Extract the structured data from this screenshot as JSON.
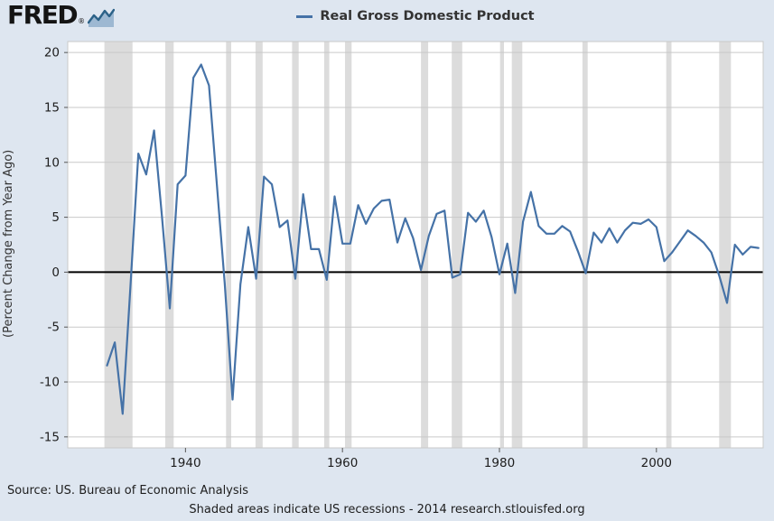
{
  "header": {
    "logo_text": "FRED",
    "logo_reg": "®",
    "legend": {
      "label": "Real Gross Domestic Product",
      "line_color": "#4572a7"
    }
  },
  "chart_data": {
    "type": "line",
    "title": "Real Gross Domestic Product",
    "ylabel": "(Percent Change from Year Ago)",
    "xlabel": "",
    "xlim": [
      1925,
      2013.6
    ],
    "ylim": [
      -16,
      21
    ],
    "x_ticks": [
      1940,
      1960,
      1980,
      2000
    ],
    "y_ticks": [
      -15,
      -10,
      -5,
      0,
      5,
      10,
      15,
      20
    ],
    "grid": "horizontal",
    "legend_position": "top-center",
    "line_color": "#4572a7",
    "recession_band_color": "#dcdcdc",
    "plot_background": "#ffffff",
    "page_background": "#dee6f0",
    "series": [
      {
        "name": "Real Gross Domestic Product",
        "x": [
          1930,
          1931,
          1932,
          1933,
          1934,
          1935,
          1936,
          1937,
          1938,
          1939,
          1940,
          1941,
          1942,
          1943,
          1944,
          1945,
          1946,
          1947,
          1948,
          1949,
          1950,
          1951,
          1952,
          1953,
          1954,
          1955,
          1956,
          1957,
          1958,
          1959,
          1960,
          1961,
          1962,
          1963,
          1964,
          1965,
          1966,
          1967,
          1968,
          1969,
          1970,
          1971,
          1972,
          1973,
          1974,
          1975,
          1976,
          1977,
          1978,
          1979,
          1980,
          1981,
          1982,
          1983,
          1984,
          1985,
          1986,
          1987,
          1988,
          1989,
          1990,
          1991,
          1992,
          1993,
          1994,
          1995,
          1996,
          1997,
          1998,
          1999,
          2000,
          2001,
          2002,
          2003,
          2004,
          2005,
          2006,
          2007,
          2008,
          2009,
          2010,
          2011,
          2012,
          2013
        ],
        "values": [
          -8.5,
          -6.4,
          -12.9,
          -1.2,
          10.8,
          8.9,
          12.9,
          5.1,
          -3.3,
          8.0,
          8.8,
          17.7,
          18.9,
          17.0,
          8.0,
          -1.0,
          -11.6,
          -1.1,
          4.1,
          -0.6,
          8.7,
          8.0,
          4.1,
          4.7,
          -0.6,
          7.1,
          2.1,
          2.1,
          -0.7,
          6.9,
          2.6,
          2.6,
          6.1,
          4.4,
          5.8,
          6.5,
          6.6,
          2.7,
          4.9,
          3.1,
          0.2,
          3.3,
          5.3,
          5.6,
          -0.5,
          -0.2,
          5.4,
          4.6,
          5.6,
          3.2,
          -0.2,
          2.6,
          -1.9,
          4.6,
          7.3,
          4.2,
          3.5,
          3.5,
          4.2,
          3.7,
          1.9,
          -0.1,
          3.6,
          2.7,
          4.0,
          2.7,
          3.8,
          4.5,
          4.4,
          4.8,
          4.1,
          1.0,
          1.8,
          2.8,
          3.8,
          3.3,
          2.7,
          1.8,
          -0.3,
          -2.8,
          2.5,
          1.6,
          2.3,
          2.2
        ]
      }
    ],
    "recessions": [
      [
        1929.67,
        1933.25
      ],
      [
        1937.42,
        1938.5
      ],
      [
        1945.17,
        1945.83
      ],
      [
        1948.92,
        1949.83
      ],
      [
        1953.58,
        1954.42
      ],
      [
        1957.67,
        1958.33
      ],
      [
        1960.33,
        1961.17
      ],
      [
        1970.0,
        1970.92
      ],
      [
        1973.92,
        1975.25
      ],
      [
        1980.08,
        1980.58
      ],
      [
        1981.58,
        1982.92
      ],
      [
        1990.58,
        1991.25
      ],
      [
        2001.25,
        2001.92
      ],
      [
        2008.0,
        2009.5
      ]
    ]
  },
  "footer": {
    "source": "Source: US. Bureau of Economic Analysis",
    "note": "Shaded areas indicate US recessions - 2014 research.stlouisfed.org"
  }
}
